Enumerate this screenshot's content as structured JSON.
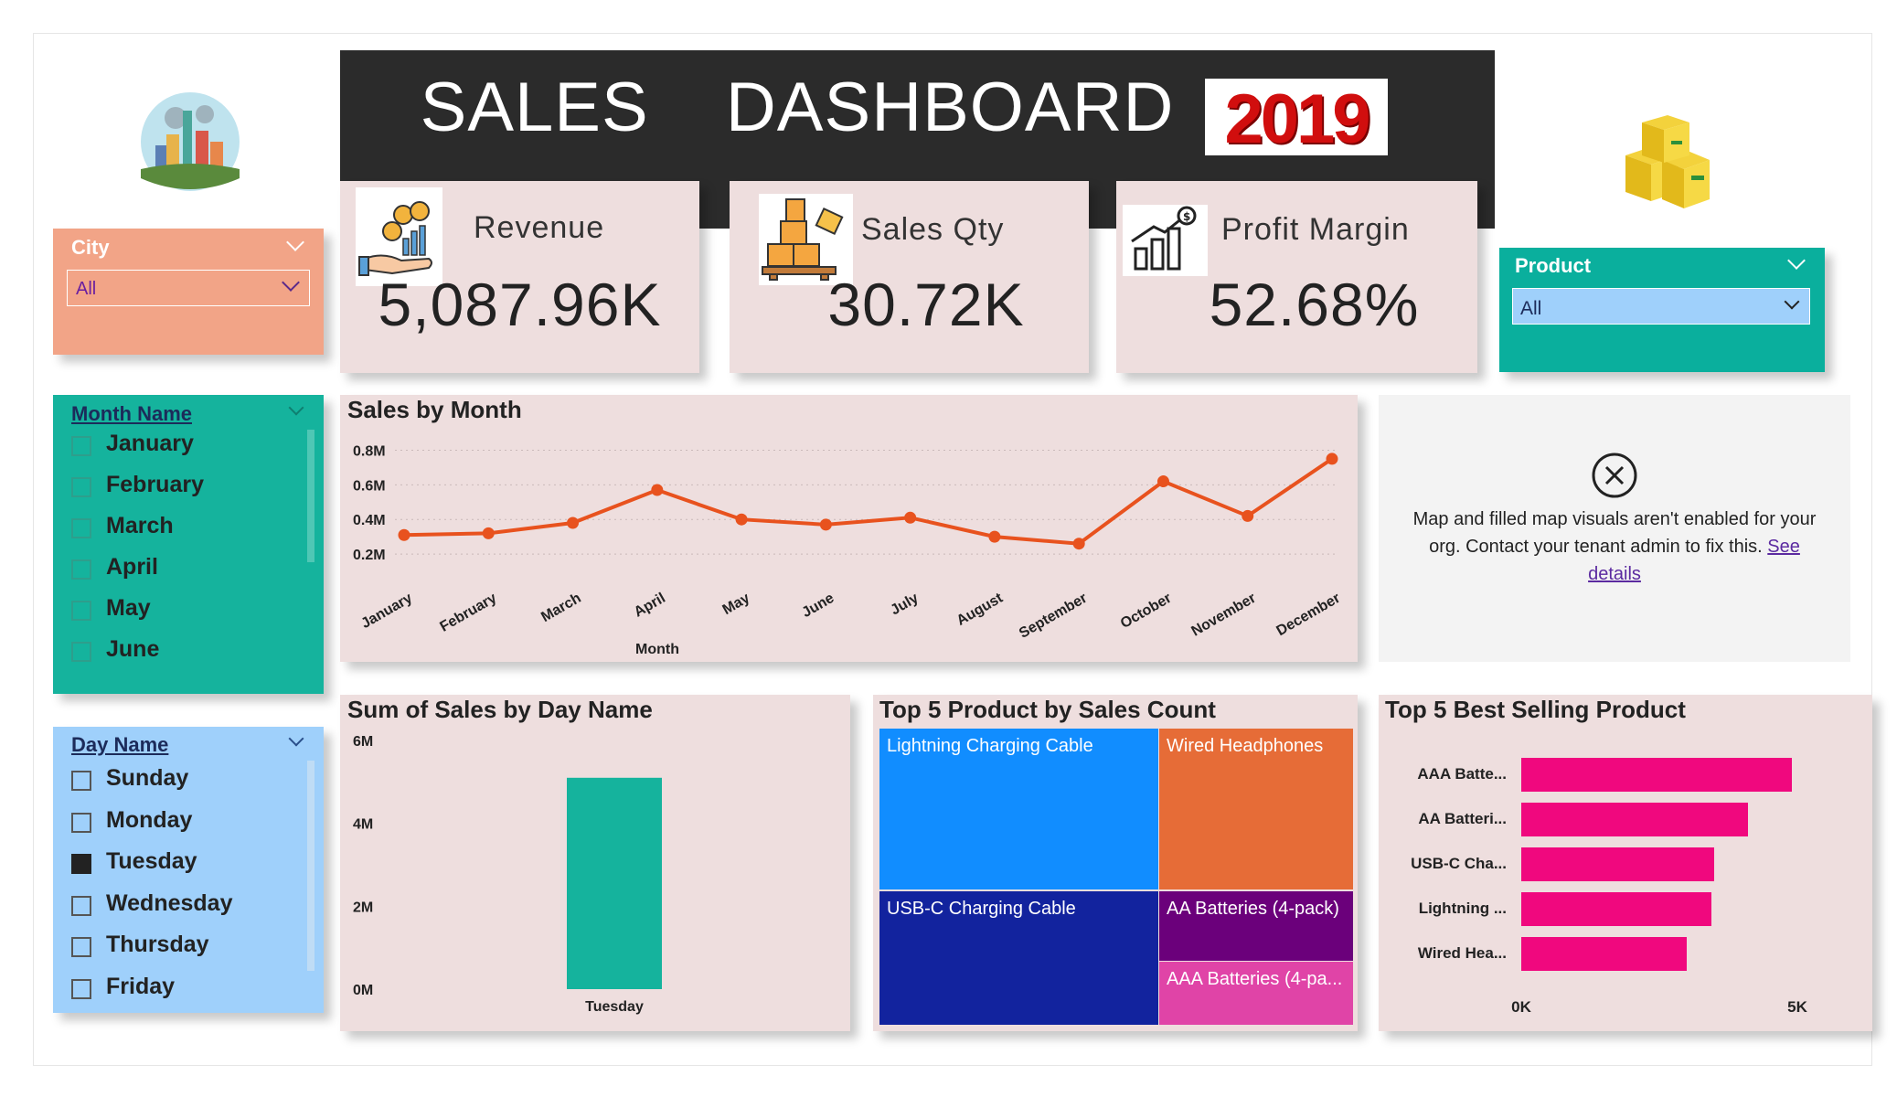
{
  "header": {
    "title": "SALES  DASHBOARD",
    "year": "2019"
  },
  "kpis": [
    {
      "label": "Revenue",
      "value": "5,087.96K",
      "icon": "money-hand-chart-icon"
    },
    {
      "label": "Sales Qty",
      "value": "30.72K",
      "icon": "boxes-pallet-icon"
    },
    {
      "label": "Profit Margin",
      "value": "52.68%",
      "icon": "growth-chart-icon"
    }
  ],
  "city_slicer": {
    "label": "City",
    "value": "All",
    "color": "#f2a487"
  },
  "product_slicer": {
    "label": "Product",
    "value": "All",
    "color": "#0aaf9d"
  },
  "month_slicer": {
    "label": "Month Name",
    "items": [
      "January",
      "February",
      "March",
      "April",
      "May",
      "June"
    ],
    "color": "#15b39d"
  },
  "day_slicer": {
    "label": "Day Name",
    "items": [
      {
        "label": "Sunday",
        "checked": false
      },
      {
        "label": "Monday",
        "checked": false
      },
      {
        "label": "Tuesday",
        "checked": true
      },
      {
        "label": "Wednesday",
        "checked": false
      },
      {
        "label": "Thursday",
        "checked": false
      },
      {
        "label": "Friday",
        "checked": false
      }
    ],
    "color": "#9fd0fb"
  },
  "map_notice": {
    "text": "Map and filled map visuals aren't enabled for your org. Contact your tenant admin to fix this.",
    "link": "See details"
  },
  "chart_data": [
    {
      "type": "line",
      "title": "Sales by Month",
      "xlabel": "Month",
      "ylabel": "",
      "categories": [
        "January",
        "February",
        "March",
        "April",
        "May",
        "June",
        "July",
        "August",
        "September",
        "October",
        "November",
        "December"
      ],
      "values": [
        0.31,
        0.32,
        0.38,
        0.57,
        0.4,
        0.37,
        0.41,
        0.3,
        0.26,
        0.62,
        0.42,
        0.75
      ],
      "y_ticks": [
        "0.2M",
        "0.4M",
        "0.6M",
        "0.8M"
      ],
      "ylim": [
        0.1,
        0.85
      ],
      "color": "#e8521e",
      "grid": true
    },
    {
      "type": "bar",
      "title": "Sum of Sales by Day Name",
      "categories": [
        "Tuesday"
      ],
      "values": [
        5.1
      ],
      "y_ticks": [
        "0M",
        "2M",
        "4M",
        "6M"
      ],
      "ylim": [
        0,
        6
      ],
      "color": "#15b39d"
    },
    {
      "type": "treemap",
      "title": "Top 5 Product by Sales Count",
      "items": [
        {
          "label": "Lightning Charging Cable",
          "color": "#118dff"
        },
        {
          "label": "Wired Headphones",
          "color": "#e66c37"
        },
        {
          "label": "USB-C Charging Cable",
          "color": "#12239e"
        },
        {
          "label": "AA Batteries (4-pack)",
          "color": "#6b007b"
        },
        {
          "label": "AAA Batteries (4-pa...",
          "color": "#e044a7"
        }
      ]
    },
    {
      "type": "bar",
      "orientation": "horizontal",
      "title": "Top 5 Best Selling Product",
      "categories": [
        "AAA Batte...",
        "AA Batteri...",
        "USB-C Cha...",
        "Lightning ...",
        "Wired Hea..."
      ],
      "values": [
        4.9,
        4.1,
        3.5,
        3.45,
        3.0
      ],
      "x_ticks": [
        "0K",
        "5K"
      ],
      "xlim": [
        0,
        5
      ],
      "color": "#f0087e"
    }
  ]
}
